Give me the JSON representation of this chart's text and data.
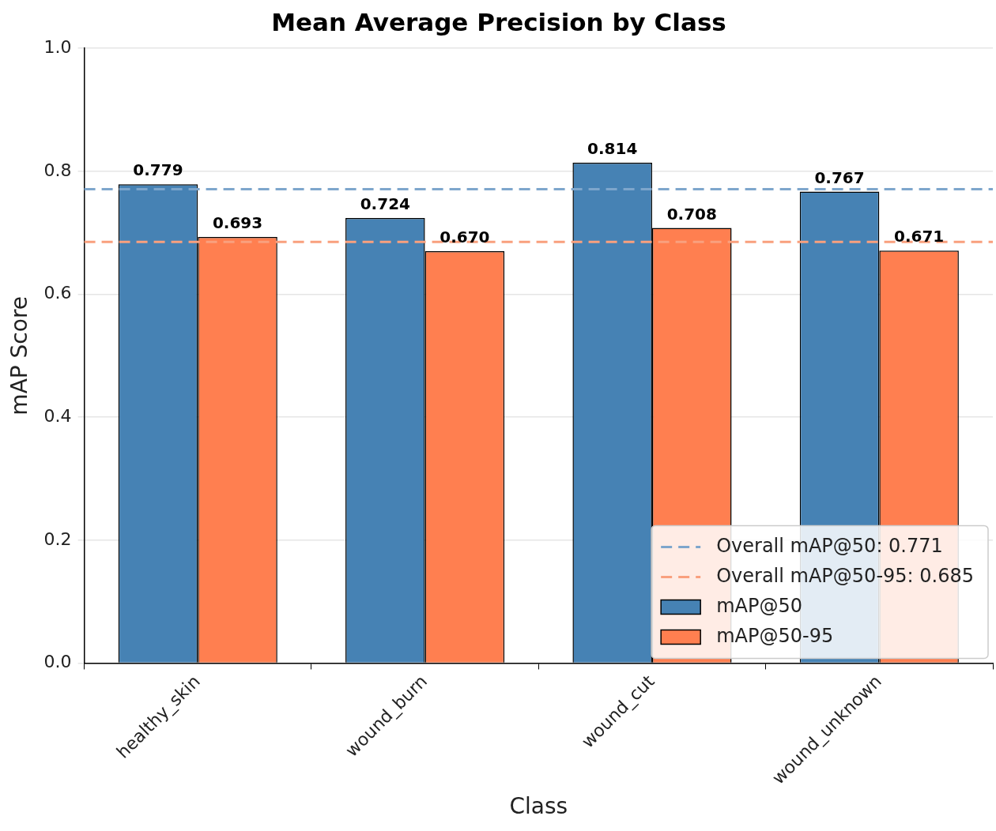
{
  "chart_data": {
    "type": "bar",
    "title": "Mean Average Precision by Class",
    "xlabel": "Class",
    "ylabel": "mAP Score",
    "categories": [
      "healthy_skin",
      "wound_burn",
      "wound_cut",
      "wound_unknown"
    ],
    "series": [
      {
        "name": "mAP@50",
        "color": "#4682b4",
        "values": [
          0.779,
          0.724,
          0.814,
          0.767
        ],
        "value_labels": [
          "0.779",
          "0.724",
          "0.814",
          "0.767"
        ]
      },
      {
        "name": "mAP@50-95",
        "color": "#ff7f50",
        "values": [
          0.693,
          0.67,
          0.708,
          0.671
        ],
        "value_labels": [
          "0.693",
          "0.670",
          "0.708",
          "0.671"
        ]
      }
    ],
    "ylim": [
      0,
      1
    ],
    "yticks": [
      {
        "value": 0,
        "label": "0.0"
      },
      {
        "value": 0.2,
        "label": "0.2"
      },
      {
        "value": 0.4,
        "label": "0.4"
      },
      {
        "value": 0.6,
        "label": "0.6"
      },
      {
        "value": 0.8,
        "label": "0.8"
      },
      {
        "value": 1,
        "label": "1.0"
      }
    ],
    "ref_lines": [
      {
        "axis": "y",
        "value": 0.771,
        "label": "Overall mAP@50: 0.771",
        "color": "#7ea6cc",
        "line_style": "dashed"
      },
      {
        "axis": "y",
        "value": 0.685,
        "label": "Overall mAP@50-95: 0.685",
        "color": "#f9a07e",
        "line_style": "dashed"
      }
    ],
    "grid": "y",
    "legend": "bottom right"
  }
}
